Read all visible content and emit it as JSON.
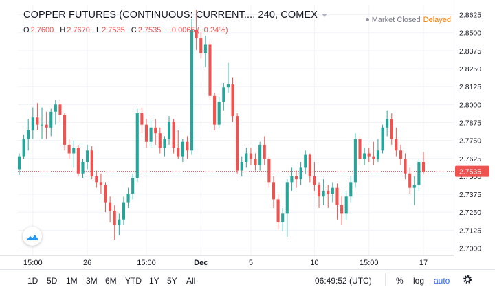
{
  "header": {
    "title": "COPPER FUTURES (CONTINUOUS: CURRENT...,  240,  COMEX",
    "ohlc": {
      "o_label": "O",
      "o_value": "2.7600",
      "h_label": "H",
      "h_value": "2.7670",
      "l_label": "L",
      "l_value": "2.7535",
      "c_label": "C",
      "c_value": "2.7535",
      "change": "−0.0065 (−0.24%)"
    },
    "market_status": "Market Closed",
    "delayed_label": "Delayed"
  },
  "colors": {
    "up": "#26a69a",
    "down": "#ef5350",
    "grid": "#f0f3fa",
    "last_price_line": "#ef5350",
    "accent": "#2962ff",
    "delayed": "#f57c00"
  },
  "chart_data": {
    "type": "candlestick",
    "title": "",
    "ylim": [
      2.695,
      2.869
    ],
    "y_ticks": [
      "2.8625",
      "2.8500",
      "2.8375",
      "2.8250",
      "2.8125",
      "2.8000",
      "2.7875",
      "2.7750",
      "2.7625",
      "2.7535",
      "2.7500",
      "2.7375",
      "2.7250",
      "2.7125",
      "2.7000"
    ],
    "x_ticks": [
      {
        "label": "15:00",
        "index": 3
      },
      {
        "label": "26",
        "index": 15
      },
      {
        "label": "15:00",
        "index": 28
      },
      {
        "label": "Dec",
        "index": 40
      },
      {
        "label": "5",
        "index": 51
      },
      {
        "label": "10",
        "index": 65
      },
      {
        "label": "15:00",
        "index": 77
      },
      {
        "label": "17",
        "index": 89
      }
    ],
    "last_price": 2.7535,
    "last_price_label": "2.7535",
    "grid": true,
    "candles": [
      {
        "o": 2.755,
        "h": 2.766,
        "l": 2.751,
        "c": 2.764
      },
      {
        "o": 2.764,
        "h": 2.779,
        "l": 2.762,
        "c": 2.776
      },
      {
        "o": 2.776,
        "h": 2.79,
        "l": 2.768,
        "c": 2.782
      },
      {
        "o": 2.782,
        "h": 2.798,
        "l": 2.776,
        "c": 2.791
      },
      {
        "o": 2.791,
        "h": 2.801,
        "l": 2.782,
        "c": 2.786
      },
      {
        "o": 2.786,
        "h": 2.798,
        "l": 2.776,
        "c": 2.786
      },
      {
        "o": 2.786,
        "h": 2.795,
        "l": 2.776,
        "c": 2.784
      },
      {
        "o": 2.784,
        "h": 2.797,
        "l": 2.778,
        "c": 2.795
      },
      {
        "o": 2.795,
        "h": 2.803,
        "l": 2.786,
        "c": 2.8
      },
      {
        "o": 2.8,
        "h": 2.803,
        "l": 2.788,
        "c": 2.793
      },
      {
        "o": 2.793,
        "h": 2.794,
        "l": 2.768,
        "c": 2.772
      },
      {
        "o": 2.772,
        "h": 2.776,
        "l": 2.762,
        "c": 2.766
      },
      {
        "o": 2.766,
        "h": 2.775,
        "l": 2.756,
        "c": 2.77
      },
      {
        "o": 2.77,
        "h": 2.772,
        "l": 2.75,
        "c": 2.752
      },
      {
        "o": 2.752,
        "h": 2.762,
        "l": 2.749,
        "c": 2.76
      },
      {
        "o": 2.76,
        "h": 2.772,
        "l": 2.755,
        "c": 2.768
      },
      {
        "o": 2.768,
        "h": 2.771,
        "l": 2.748,
        "c": 2.75
      },
      {
        "o": 2.75,
        "h": 2.754,
        "l": 2.742,
        "c": 2.746
      },
      {
        "o": 2.746,
        "h": 2.752,
        "l": 2.738,
        "c": 2.744
      },
      {
        "o": 2.744,
        "h": 2.746,
        "l": 2.725,
        "c": 2.732
      },
      {
        "o": 2.732,
        "h": 2.736,
        "l": 2.718,
        "c": 2.726
      },
      {
        "o": 2.726,
        "h": 2.73,
        "l": 2.706,
        "c": 2.716
      },
      {
        "o": 2.716,
        "h": 2.724,
        "l": 2.709,
        "c": 2.72
      },
      {
        "o": 2.72,
        "h": 2.736,
        "l": 2.716,
        "c": 2.732
      },
      {
        "o": 2.732,
        "h": 2.742,
        "l": 2.728,
        "c": 2.738
      },
      {
        "o": 2.738,
        "h": 2.752,
        "l": 2.734,
        "c": 2.749
      },
      {
        "o": 2.749,
        "h": 2.797,
        "l": 2.746,
        "c": 2.794
      },
      {
        "o": 2.794,
        "h": 2.798,
        "l": 2.78,
        "c": 2.786
      },
      {
        "o": 2.786,
        "h": 2.79,
        "l": 2.77,
        "c": 2.774
      },
      {
        "o": 2.774,
        "h": 2.789,
        "l": 2.77,
        "c": 2.784
      },
      {
        "o": 2.784,
        "h": 2.79,
        "l": 2.772,
        "c": 2.78
      },
      {
        "o": 2.78,
        "h": 2.784,
        "l": 2.766,
        "c": 2.77
      },
      {
        "o": 2.77,
        "h": 2.778,
        "l": 2.764,
        "c": 2.776
      },
      {
        "o": 2.776,
        "h": 2.792,
        "l": 2.772,
        "c": 2.788
      },
      {
        "o": 2.788,
        "h": 2.79,
        "l": 2.766,
        "c": 2.77
      },
      {
        "o": 2.77,
        "h": 2.782,
        "l": 2.762,
        "c": 2.764
      },
      {
        "o": 2.764,
        "h": 2.776,
        "l": 2.76,
        "c": 2.774
      },
      {
        "o": 2.774,
        "h": 2.778,
        "l": 2.762,
        "c": 2.768
      },
      {
        "o": 2.768,
        "h": 2.86,
        "l": 2.765,
        "c": 2.852
      },
      {
        "o": 2.852,
        "h": 2.866,
        "l": 2.838,
        "c": 2.846
      },
      {
        "o": 2.846,
        "h": 2.851,
        "l": 2.832,
        "c": 2.836
      },
      {
        "o": 2.836,
        "h": 2.848,
        "l": 2.826,
        "c": 2.842
      },
      {
        "o": 2.842,
        "h": 2.844,
        "l": 2.803,
        "c": 2.806
      },
      {
        "o": 2.806,
        "h": 2.808,
        "l": 2.782,
        "c": 2.786
      },
      {
        "o": 2.786,
        "h": 2.805,
        "l": 2.784,
        "c": 2.802
      },
      {
        "o": 2.802,
        "h": 2.815,
        "l": 2.796,
        "c": 2.812
      },
      {
        "o": 2.812,
        "h": 2.829,
        "l": 2.808,
        "c": 2.814
      },
      {
        "o": 2.814,
        "h": 2.819,
        "l": 2.788,
        "c": 2.792
      },
      {
        "o": 2.792,
        "h": 2.794,
        "l": 2.752,
        "c": 2.754
      },
      {
        "o": 2.754,
        "h": 2.764,
        "l": 2.75,
        "c": 2.76
      },
      {
        "o": 2.76,
        "h": 2.77,
        "l": 2.756,
        "c": 2.766
      },
      {
        "o": 2.766,
        "h": 2.77,
        "l": 2.758,
        "c": 2.762
      },
      {
        "o": 2.762,
        "h": 2.766,
        "l": 2.754,
        "c": 2.758
      },
      {
        "o": 2.758,
        "h": 2.774,
        "l": 2.754,
        "c": 2.772
      },
      {
        "o": 2.772,
        "h": 2.778,
        "l": 2.758,
        "c": 2.762
      },
      {
        "o": 2.762,
        "h": 2.764,
        "l": 2.742,
        "c": 2.746
      },
      {
        "o": 2.746,
        "h": 2.75,
        "l": 2.728,
        "c": 2.734
      },
      {
        "o": 2.734,
        "h": 2.738,
        "l": 2.713,
        "c": 2.718
      },
      {
        "o": 2.718,
        "h": 2.728,
        "l": 2.712,
        "c": 2.724
      },
      {
        "o": 2.724,
        "h": 2.748,
        "l": 2.708,
        "c": 2.746
      },
      {
        "o": 2.746,
        "h": 2.756,
        "l": 2.74,
        "c": 2.75
      },
      {
        "o": 2.75,
        "h": 2.754,
        "l": 2.742,
        "c": 2.748
      },
      {
        "o": 2.748,
        "h": 2.76,
        "l": 2.744,
        "c": 2.756
      },
      {
        "o": 2.756,
        "h": 2.768,
        "l": 2.752,
        "c": 2.765
      },
      {
        "o": 2.765,
        "h": 2.766,
        "l": 2.746,
        "c": 2.75
      },
      {
        "o": 2.75,
        "h": 2.76,
        "l": 2.74,
        "c": 2.744
      },
      {
        "o": 2.744,
        "h": 2.746,
        "l": 2.728,
        "c": 2.736
      },
      {
        "o": 2.736,
        "h": 2.748,
        "l": 2.73,
        "c": 2.74
      },
      {
        "o": 2.74,
        "h": 2.744,
        "l": 2.728,
        "c": 2.738
      },
      {
        "o": 2.738,
        "h": 2.746,
        "l": 2.732,
        "c": 2.742
      },
      {
        "o": 2.742,
        "h": 2.745,
        "l": 2.72,
        "c": 2.73
      },
      {
        "o": 2.73,
        "h": 2.736,
        "l": 2.716,
        "c": 2.724
      },
      {
        "o": 2.724,
        "h": 2.74,
        "l": 2.72,
        "c": 2.736
      },
      {
        "o": 2.736,
        "h": 2.75,
        "l": 2.732,
        "c": 2.746
      },
      {
        "o": 2.746,
        "h": 2.78,
        "l": 2.742,
        "c": 2.776
      },
      {
        "o": 2.776,
        "h": 2.778,
        "l": 2.758,
        "c": 2.762
      },
      {
        "o": 2.762,
        "h": 2.77,
        "l": 2.758,
        "c": 2.766
      },
      {
        "o": 2.766,
        "h": 2.77,
        "l": 2.76,
        "c": 2.764
      },
      {
        "o": 2.764,
        "h": 2.774,
        "l": 2.758,
        "c": 2.762
      },
      {
        "o": 2.762,
        "h": 2.776,
        "l": 2.76,
        "c": 2.768
      },
      {
        "o": 2.768,
        "h": 2.786,
        "l": 2.766,
        "c": 2.784
      },
      {
        "o": 2.784,
        "h": 2.796,
        "l": 2.778,
        "c": 2.79
      },
      {
        "o": 2.79,
        "h": 2.794,
        "l": 2.772,
        "c": 2.776
      },
      {
        "o": 2.776,
        "h": 2.784,
        "l": 2.764,
        "c": 2.768
      },
      {
        "o": 2.768,
        "h": 2.772,
        "l": 2.758,
        "c": 2.762
      },
      {
        "o": 2.762,
        "h": 2.766,
        "l": 2.748,
        "c": 2.752
      },
      {
        "o": 2.752,
        "h": 2.756,
        "l": 2.738,
        "c": 2.742
      },
      {
        "o": 2.742,
        "h": 2.75,
        "l": 2.73,
        "c": 2.744
      },
      {
        "o": 2.744,
        "h": 2.762,
        "l": 2.74,
        "c": 2.76
      },
      {
        "o": 2.76,
        "h": 2.767,
        "l": 2.752,
        "c": 2.7535
      }
    ]
  },
  "toolbar": {
    "ranges": [
      "1D",
      "5D",
      "1M",
      "3M",
      "6M",
      "YTD",
      "1Y",
      "5Y",
      "All"
    ],
    "clock": "06:49:52 (UTC)",
    "percent_label": "%",
    "log_label": "log",
    "auto_label": "auto",
    "settings_icon": "gear-icon"
  }
}
